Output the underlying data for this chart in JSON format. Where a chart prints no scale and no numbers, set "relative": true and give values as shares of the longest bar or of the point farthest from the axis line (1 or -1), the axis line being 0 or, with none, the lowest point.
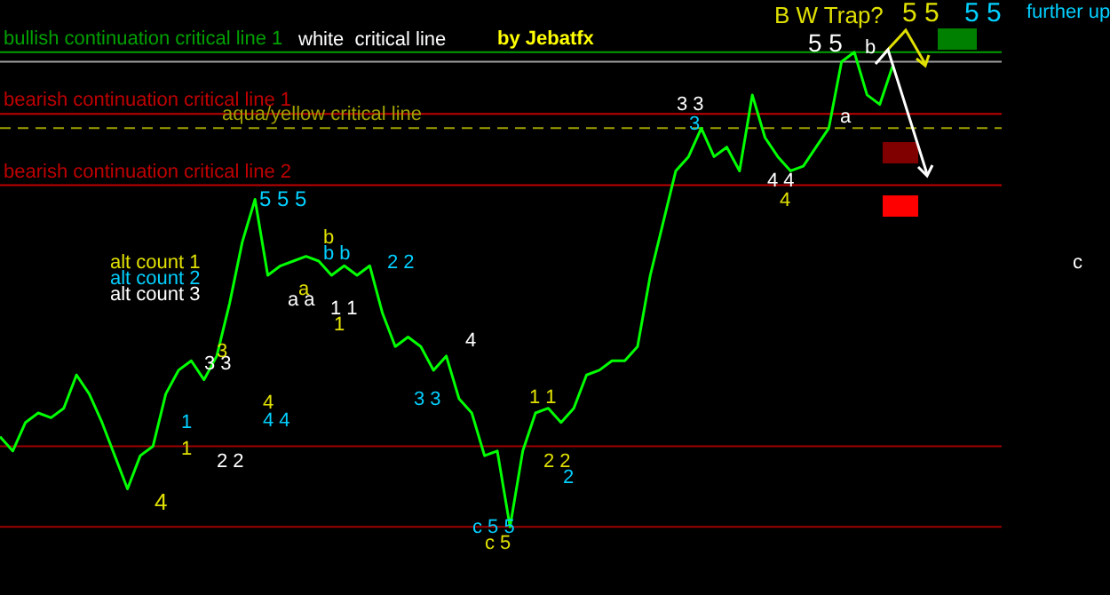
{
  "chart_data": {
    "type": "line",
    "subtitle": "by Jebatfx",
    "relative": true,
    "legend": false,
    "grid": false,
    "marker": "none",
    "line_style": "solid",
    "categories": [
      null,
      null,
      null,
      null,
      null,
      null,
      null,
      null,
      null,
      null,
      null,
      null,
      null,
      null,
      null,
      null,
      null,
      null,
      null,
      null,
      null,
      null,
      null,
      null,
      null,
      null,
      null,
      null,
      null,
      null,
      null,
      null,
      null,
      null,
      null,
      null,
      null,
      null,
      null,
      null,
      null,
      null,
      null,
      null,
      null,
      null,
      null,
      null,
      null,
      null,
      null,
      null,
      null,
      null,
      null,
      null,
      null,
      null,
      null,
      null,
      null,
      null,
      null,
      null,
      null,
      null,
      null,
      null,
      null,
      null,
      null,
      null,
      null,
      null,
      null,
      null,
      null,
      null,
      null
    ],
    "series": [
      {
        "color": "#00ff00",
        "values": [
          0.19,
          0.16,
          0.22,
          0.24,
          0.23,
          0.25,
          0.32,
          0.28,
          0.22,
          0.15,
          0.08,
          0.15,
          0.17,
          0.28,
          0.33,
          0.35,
          0.31,
          0.36,
          0.47,
          0.6,
          0.69,
          0.53,
          0.55,
          0.56,
          0.57,
          0.56,
          0.53,
          0.55,
          0.53,
          0.55,
          0.45,
          0.38,
          0.4,
          0.38,
          0.33,
          0.36,
          0.27,
          0.24,
          0.15,
          0.16,
          0.0,
          0.16,
          0.24,
          0.25,
          0.22,
          0.25,
          0.32,
          0.33,
          0.35,
          0.35,
          0.38,
          0.53,
          0.64,
          0.75,
          0.78,
          0.84,
          0.78,
          0.8,
          0.75,
          0.91,
          0.82,
          0.78,
          0.75,
          0.76,
          0.8,
          0.84,
          0.98,
          1.0,
          0.91,
          0.89,
          0.97,
          null,
          null,
          null,
          null,
          null,
          null,
          null,
          null
        ]
      }
    ],
    "ref_lines": [
      {
        "axis": "y",
        "value": 1.0,
        "label": "bullish continuation critical line 1",
        "color": "#00a000",
        "line_style": "solid"
      },
      {
        "axis": "y",
        "value": 0.98,
        "label": "white  critical line",
        "color": "#a0a0a0",
        "line_style": "solid"
      },
      {
        "axis": "y",
        "value": 0.87,
        "label": "bearish continuation critical line 1",
        "color": "#c00000",
        "line_style": "solid"
      },
      {
        "axis": "y",
        "value": 0.84,
        "label": "aqua/yellow critical line",
        "color": "#a0a000",
        "line_style": "dashed"
      },
      {
        "axis": "y",
        "value": 0.72,
        "label": "bearish continuation critical line 2",
        "color": "#c00000",
        "line_style": "solid"
      },
      {
        "axis": "y",
        "value": 0.17,
        "color": "#a00000",
        "line_style": "solid"
      },
      {
        "axis": "y",
        "value": 0.0,
        "color": "#a00000",
        "line_style": "solid"
      }
    ],
    "annotations": [
      "alt count 1",
      "alt count 2",
      "alt count 3",
      "B W Trap?",
      "further up",
      "5 5",
      "5 5",
      "5 5",
      "b",
      "a",
      "3 3",
      "3",
      "4 4",
      "4",
      "5 5 5",
      "b",
      "b b",
      "2 2",
      "a a",
      "a",
      "1 1",
      "1",
      "3 3",
      "3",
      "4",
      "4 4",
      "4",
      "3 3",
      "1",
      "1",
      "2 2",
      "4",
      "c 5 5",
      "c 5",
      "1 1",
      "2 2",
      "2",
      "c"
    ]
  }
}
